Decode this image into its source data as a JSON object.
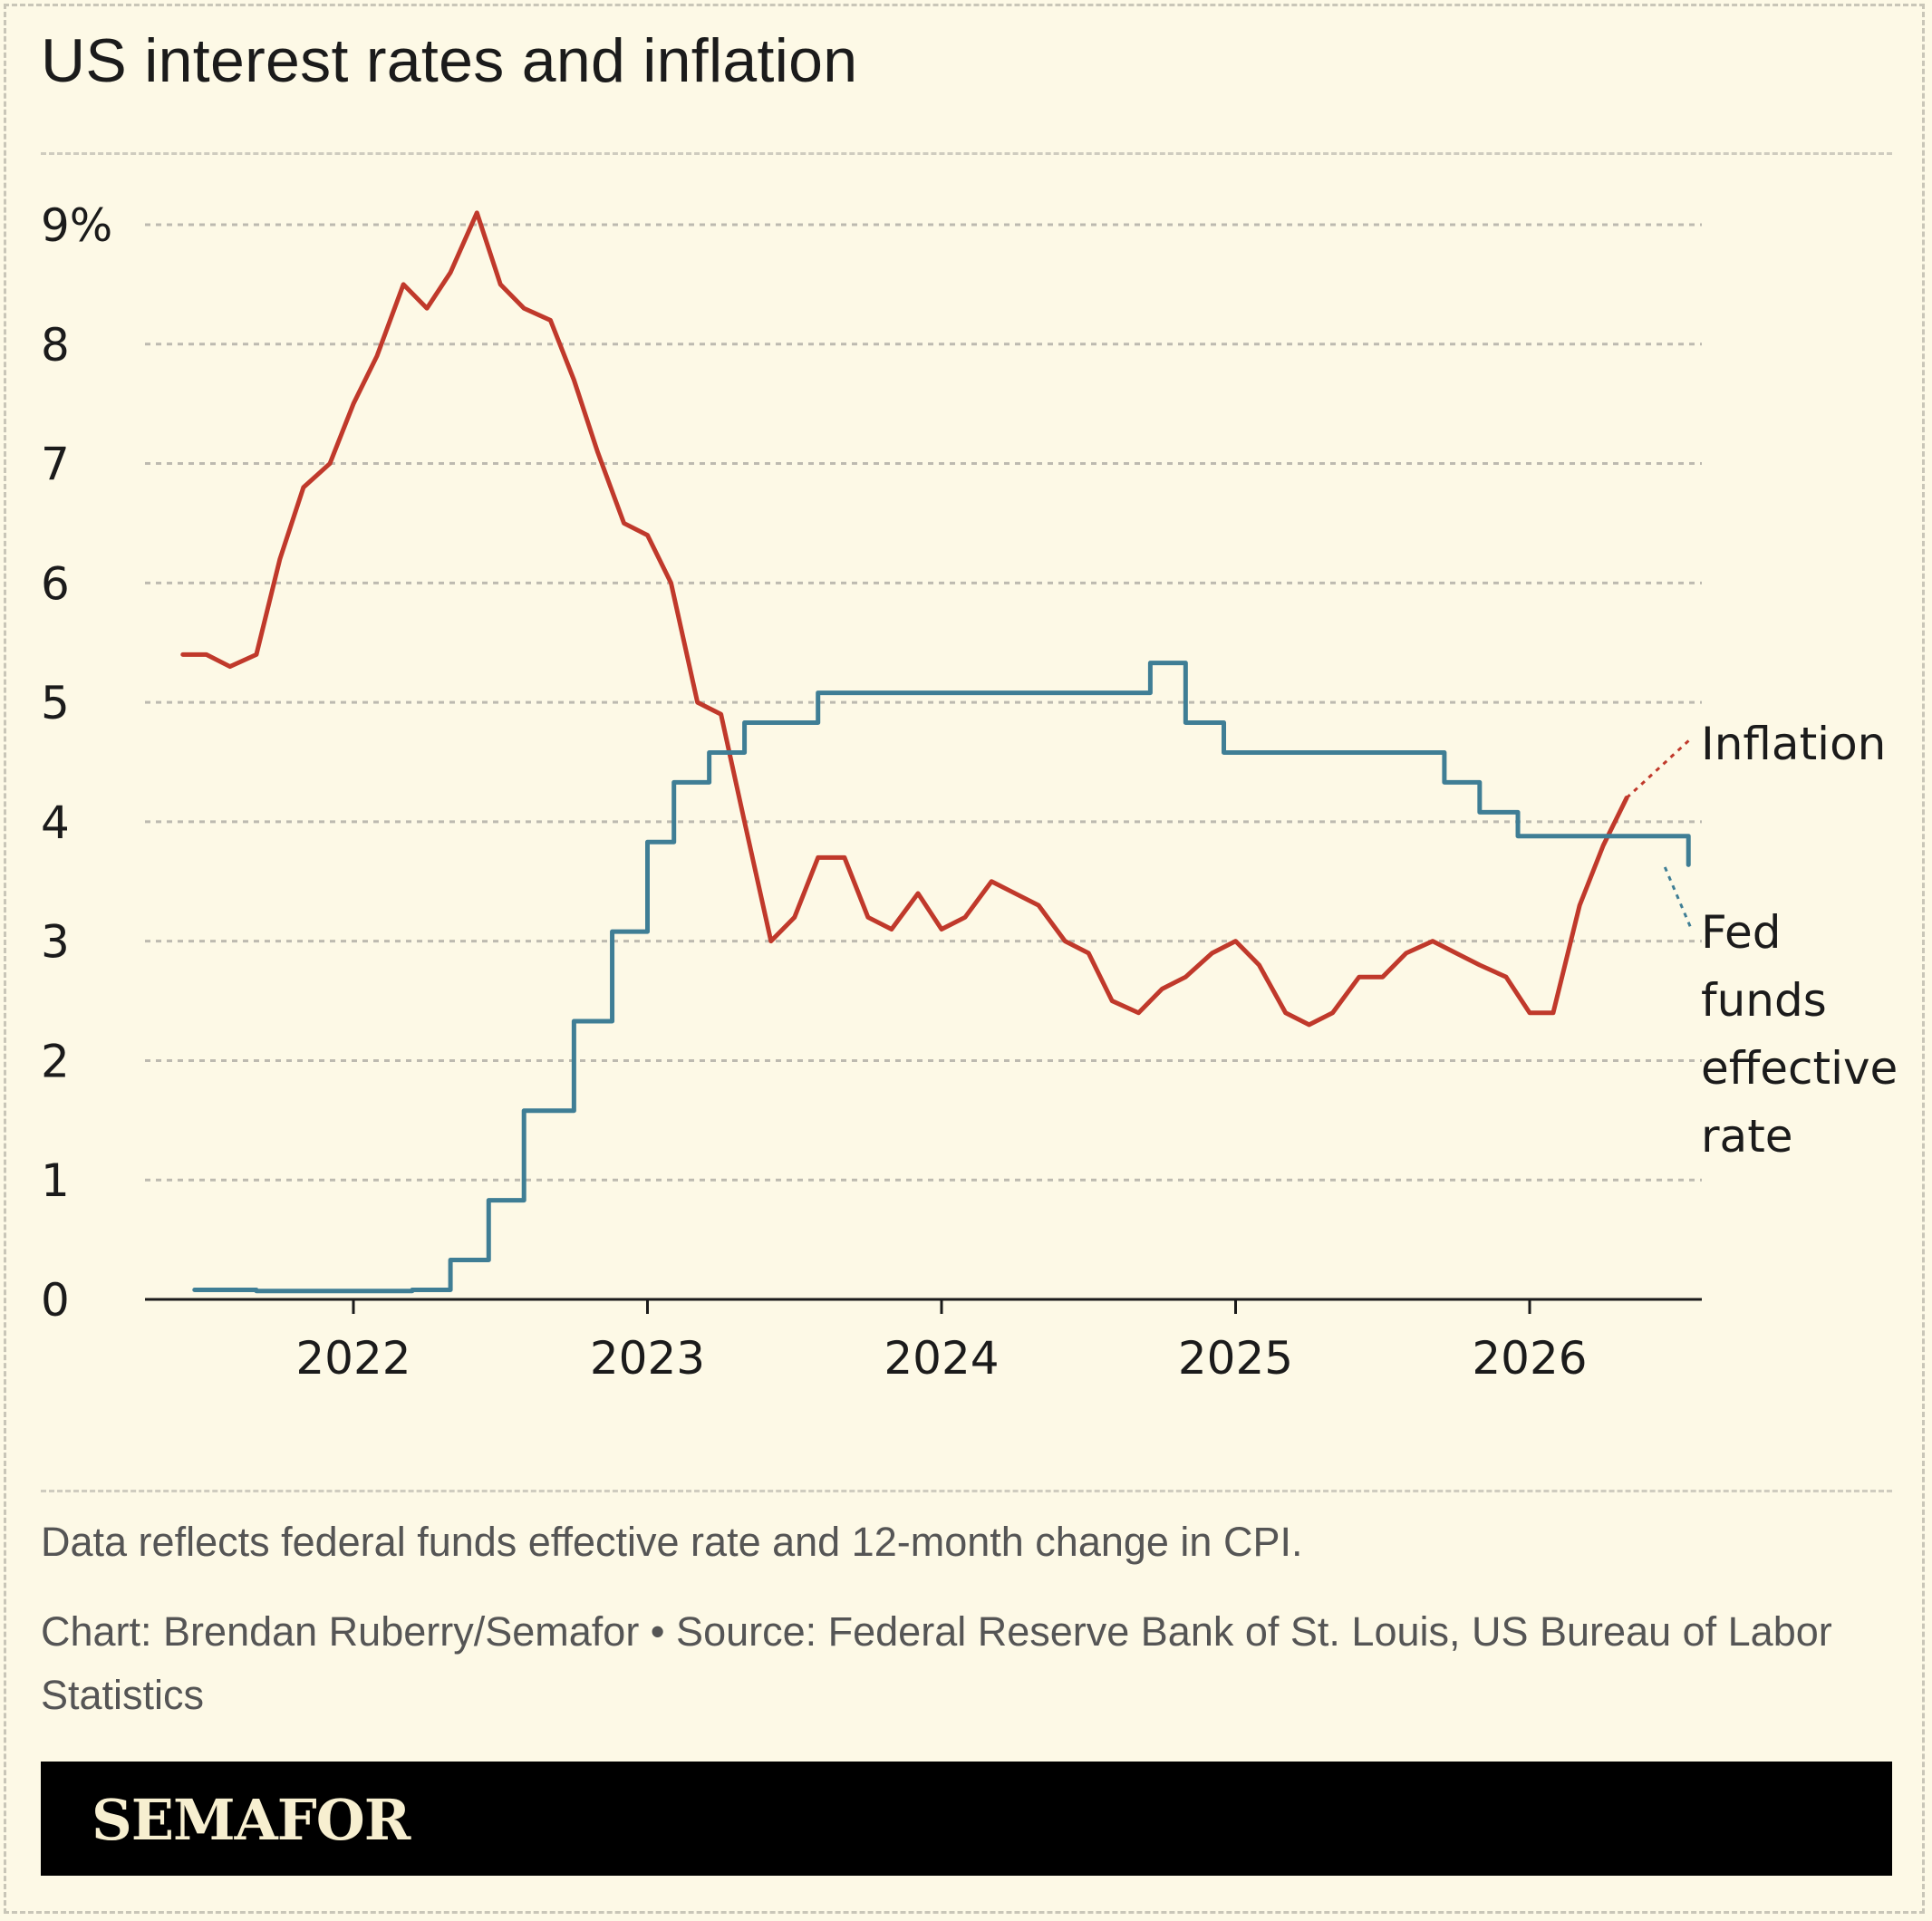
{
  "title": "US interest rates and inflation",
  "note": "Data reflects federal funds effective rate and 12-month change in CPI.",
  "credit": "Chart: Brendan Ruberry/Semafor • Source: Federal Reserve Bank of St. Louis, US Bureau of Labor Statistics",
  "brand": "SEMAFOR",
  "chart_data": {
    "type": "line",
    "title": "US interest rates and inflation",
    "xlabel": "",
    "ylabel": "",
    "xlim": [
      2021.3,
      2026.6
    ],
    "ylim": [
      0,
      9
    ],
    "y_ticks": [
      0,
      1,
      2,
      3,
      4,
      5,
      6,
      7,
      8,
      9
    ],
    "y_tick_labels": [
      "0",
      "1",
      "2",
      "3",
      "4",
      "5",
      "6",
      "7",
      "8",
      "9%"
    ],
    "x_ticks": [
      2022,
      2023,
      2024,
      2025,
      2026
    ],
    "x_tick_labels": [
      "2022",
      "2023",
      "2024",
      "2025",
      "2026"
    ],
    "grid": "horizontal dashed",
    "legend": "direct labels at right end of lines",
    "colors": {
      "inflation": "#c0392b",
      "fed": "#3f7e95"
    },
    "series": [
      {
        "name": "Inflation",
        "color": "#c0392b",
        "x": [
          2021.42,
          2021.5,
          2021.58,
          2021.67,
          2021.75,
          2021.83,
          2021.92,
          2022.0,
          2022.08,
          2022.17,
          2022.25,
          2022.33,
          2022.42,
          2022.5,
          2022.58,
          2022.67,
          2022.75,
          2022.83,
          2022.92,
          2023.0,
          2023.08,
          2023.17,
          2023.25,
          2023.33,
          2023.42,
          2023.5,
          2023.58,
          2023.67,
          2023.75,
          2023.83,
          2023.92,
          2024.0,
          2024.08,
          2024.17,
          2024.25,
          2024.33,
          2024.42,
          2024.5,
          2024.58,
          2024.67,
          2024.75,
          2024.83,
          2024.92,
          2025.0,
          2025.08,
          2025.17,
          2025.25,
          2025.33,
          2025.42,
          2025.5,
          2025.58,
          2025.67,
          2025.75,
          2025.83,
          2025.92,
          2026.0,
          2026.08,
          2026.17,
          2026.25,
          2026.33
        ],
        "values": [
          5.4,
          5.4,
          5.3,
          5.4,
          6.2,
          6.8,
          7.0,
          7.5,
          7.9,
          8.5,
          8.3,
          8.6,
          9.1,
          8.5,
          8.3,
          8.2,
          7.7,
          7.1,
          6.5,
          6.4,
          6.0,
          5.0,
          4.9,
          4.0,
          3.0,
          3.2,
          3.7,
          3.7,
          3.2,
          3.1,
          3.4,
          3.1,
          3.2,
          3.5,
          3.4,
          3.3,
          3.0,
          2.9,
          2.5,
          2.4,
          2.6,
          2.7,
          2.9,
          3.0,
          2.8,
          2.4,
          2.3,
          2.4,
          2.7,
          2.7,
          2.9,
          3.0,
          2.9,
          2.8,
          2.7,
          2.4,
          2.4,
          3.3,
          3.8,
          4.2
        ],
        "projection": {
          "x": [
            2026.33,
            2026.55
          ],
          "values": [
            4.2,
            4.7
          ]
        }
      },
      {
        "name": "Fed funds effective rate",
        "color": "#3f7e95",
        "step": true,
        "x": [
          2021.46,
          2021.67,
          2022.2,
          2022.33,
          2022.46,
          2022.58,
          2022.75,
          2022.88,
          2023.0,
          2023.09,
          2023.21,
          2023.33,
          2023.58,
          2024.71,
          2024.83,
          2024.96,
          2025.71,
          2025.83,
          2025.96,
          2026.54
        ],
        "values": [
          0.08,
          0.07,
          0.08,
          0.33,
          0.83,
          1.58,
          2.33,
          3.08,
          3.83,
          4.33,
          4.58,
          4.83,
          5.08,
          5.33,
          4.83,
          4.58,
          4.33,
          4.08,
          3.88,
          3.64
        ],
        "projection": {
          "x": [
            2026.46,
            2026.55
          ],
          "values": [
            3.62,
            3.1
          ]
        }
      }
    ],
    "series_labels": {
      "inflation": "Inflation",
      "fed_lines": [
        "Fed",
        "funds",
        "effective",
        "rate"
      ]
    }
  }
}
